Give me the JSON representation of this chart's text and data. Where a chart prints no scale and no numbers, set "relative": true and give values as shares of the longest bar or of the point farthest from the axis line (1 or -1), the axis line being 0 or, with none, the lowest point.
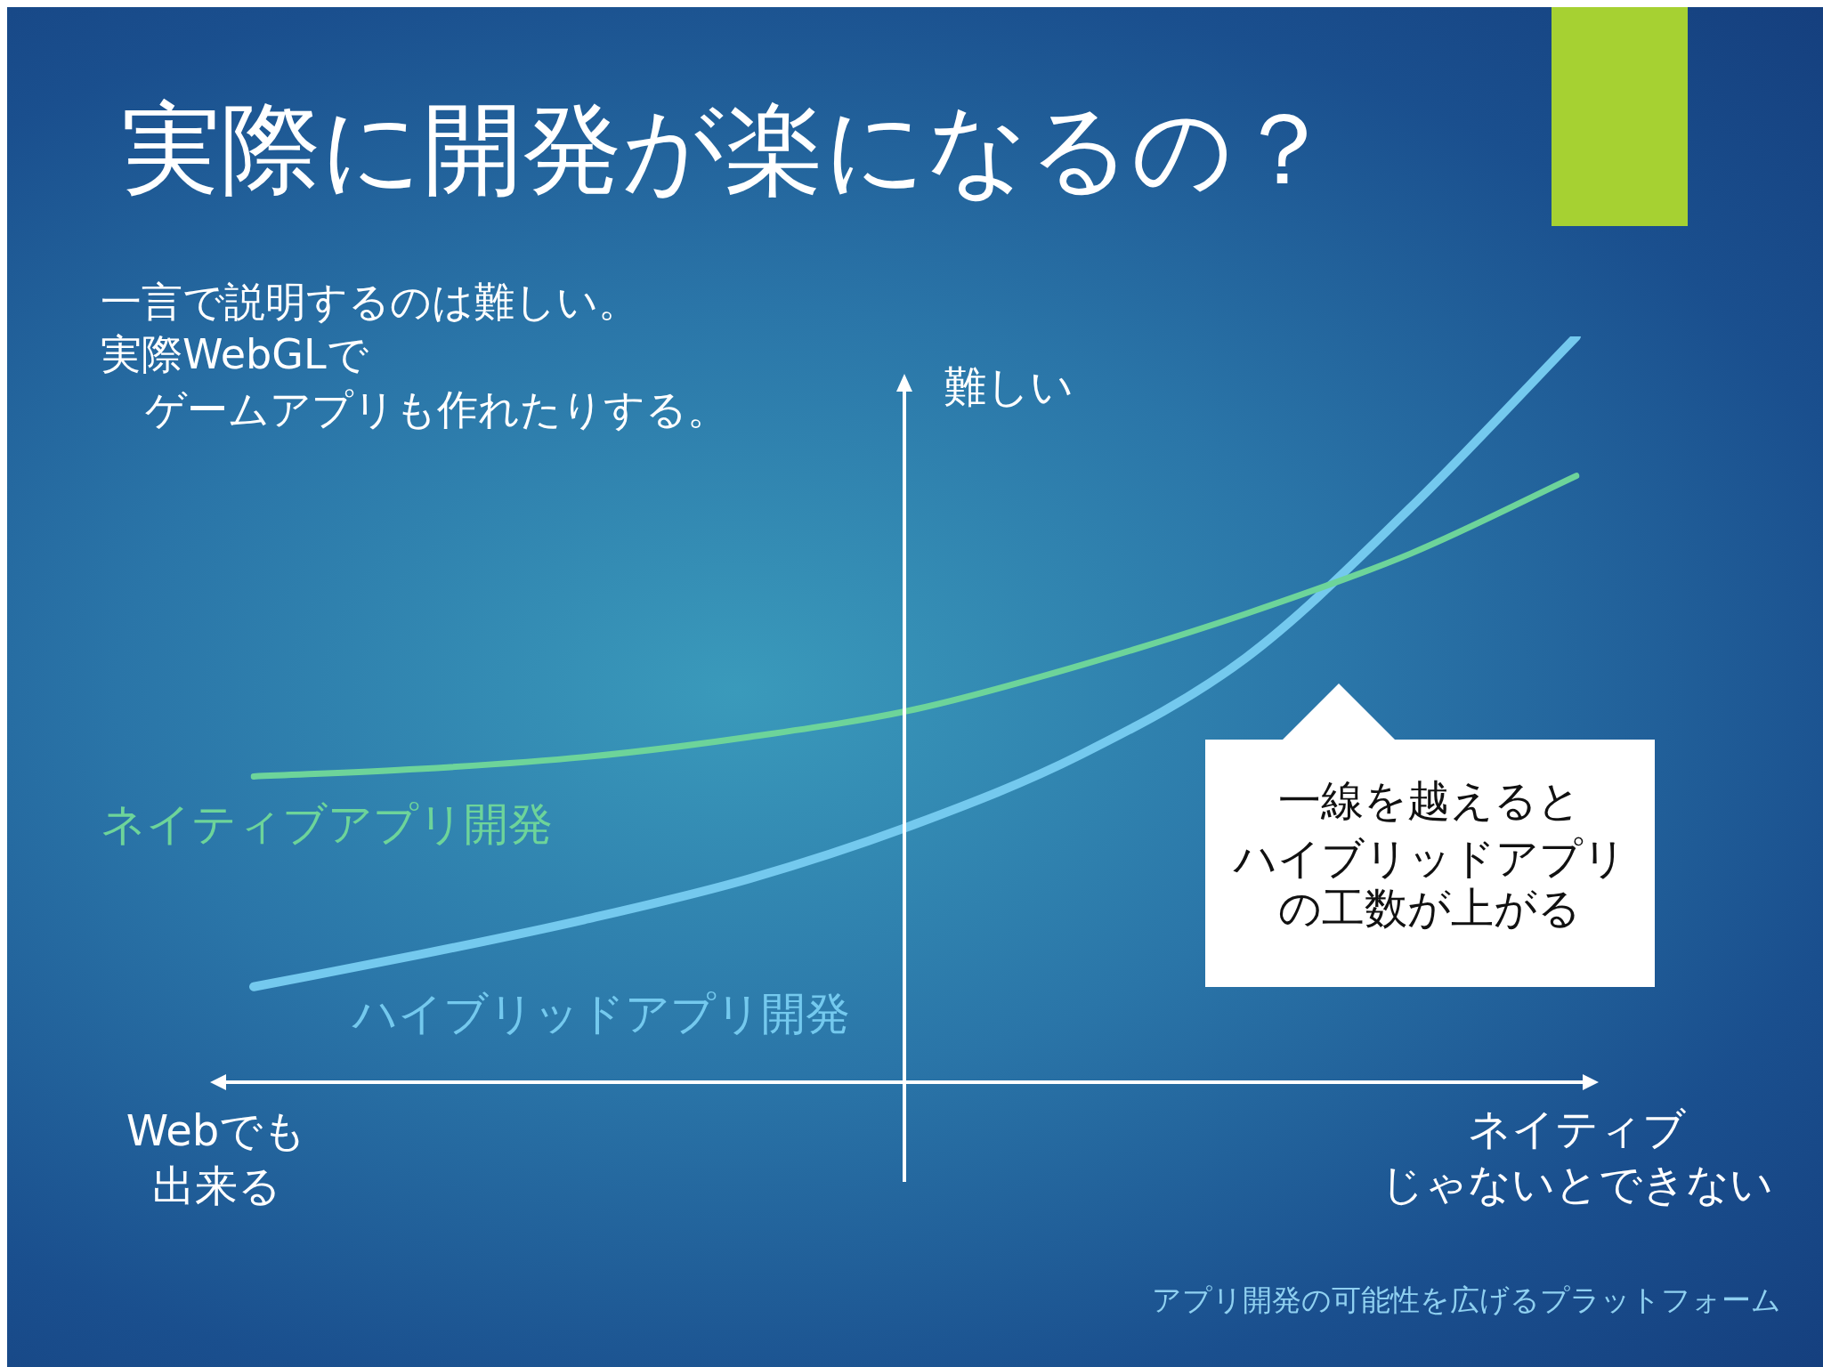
{
  "chart_data": {
    "type": "line",
    "title": "実際に開発が楽になるの？",
    "subtitle": "一言で説明するのは難しい。",
    "ylabel": "難しい",
    "relative": true,
    "marker": "none",
    "categories": [
      null,
      null,
      null,
      null,
      null,
      null,
      null,
      null,
      null
    ],
    "series": [
      {
        "name": "ネイティブアプリ開発",
        "color": "#6dd49a",
        "values": [
          0.41,
          0.42,
          0.436,
          0.463,
          0.5,
          0.559,
          0.628,
          0.709,
          0.813
        ]
      },
      {
        "name": "ハイブリッドアプリ開発",
        "color": "#74c9ee",
        "values": [
          0.128,
          0.171,
          0.218,
          0.273,
          0.346,
          0.439,
          0.569,
          0.771,
          1
        ]
      }
    ],
    "annotations": [
      "実際WebGLで",
      "ゲームアプリも作れたりする。",
      "Webでも",
      "出来る",
      "ネイティブ",
      "じゃないとできない",
      "一線を越えると",
      "ハイブリッドアプリ",
      "の工数が上がる",
      "アプリ開発の可能性を広げるプラットフォーム"
    ]
  }
}
